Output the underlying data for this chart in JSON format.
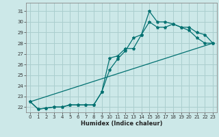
{
  "xlabel": "Humidex (Indice chaleur)",
  "xlim": [
    -0.5,
    23.5
  ],
  "ylim": [
    21.5,
    31.8
  ],
  "yticks": [
    22,
    23,
    24,
    25,
    26,
    27,
    28,
    29,
    30,
    31
  ],
  "xticks": [
    0,
    1,
    2,
    3,
    4,
    5,
    6,
    7,
    8,
    9,
    10,
    11,
    12,
    13,
    14,
    15,
    16,
    17,
    18,
    19,
    20,
    21,
    22,
    23
  ],
  "bg_color": "#cce8e8",
  "grid_color": "#aacece",
  "line_color": "#007070",
  "line1_x": [
    0,
    1,
    2,
    3,
    4,
    5,
    6,
    7,
    8,
    9,
    10,
    11,
    12,
    13,
    14,
    15,
    16,
    17,
    18,
    19,
    20,
    21,
    22,
    23
  ],
  "line1_y": [
    22.5,
    21.8,
    21.9,
    22.0,
    22.0,
    22.2,
    22.2,
    22.2,
    22.2,
    23.4,
    25.5,
    26.5,
    27.3,
    28.5,
    28.8,
    31.0,
    30.0,
    30.0,
    29.8,
    29.5,
    29.5,
    29.0,
    28.8,
    28.0
  ],
  "line2_x": [
    0,
    1,
    2,
    3,
    4,
    5,
    6,
    7,
    8,
    9,
    10,
    11,
    12,
    13,
    14,
    15,
    16,
    17,
    18,
    19,
    20,
    21,
    22,
    23
  ],
  "line2_y": [
    22.5,
    21.8,
    21.9,
    22.0,
    22.0,
    22.2,
    22.2,
    22.2,
    22.2,
    23.4,
    26.6,
    26.8,
    27.5,
    27.5,
    28.8,
    30.0,
    29.5,
    29.5,
    29.8,
    29.5,
    29.2,
    28.5,
    28.0,
    28.0
  ],
  "line3_x": [
    0,
    23
  ],
  "line3_y": [
    22.5,
    28.0
  ]
}
